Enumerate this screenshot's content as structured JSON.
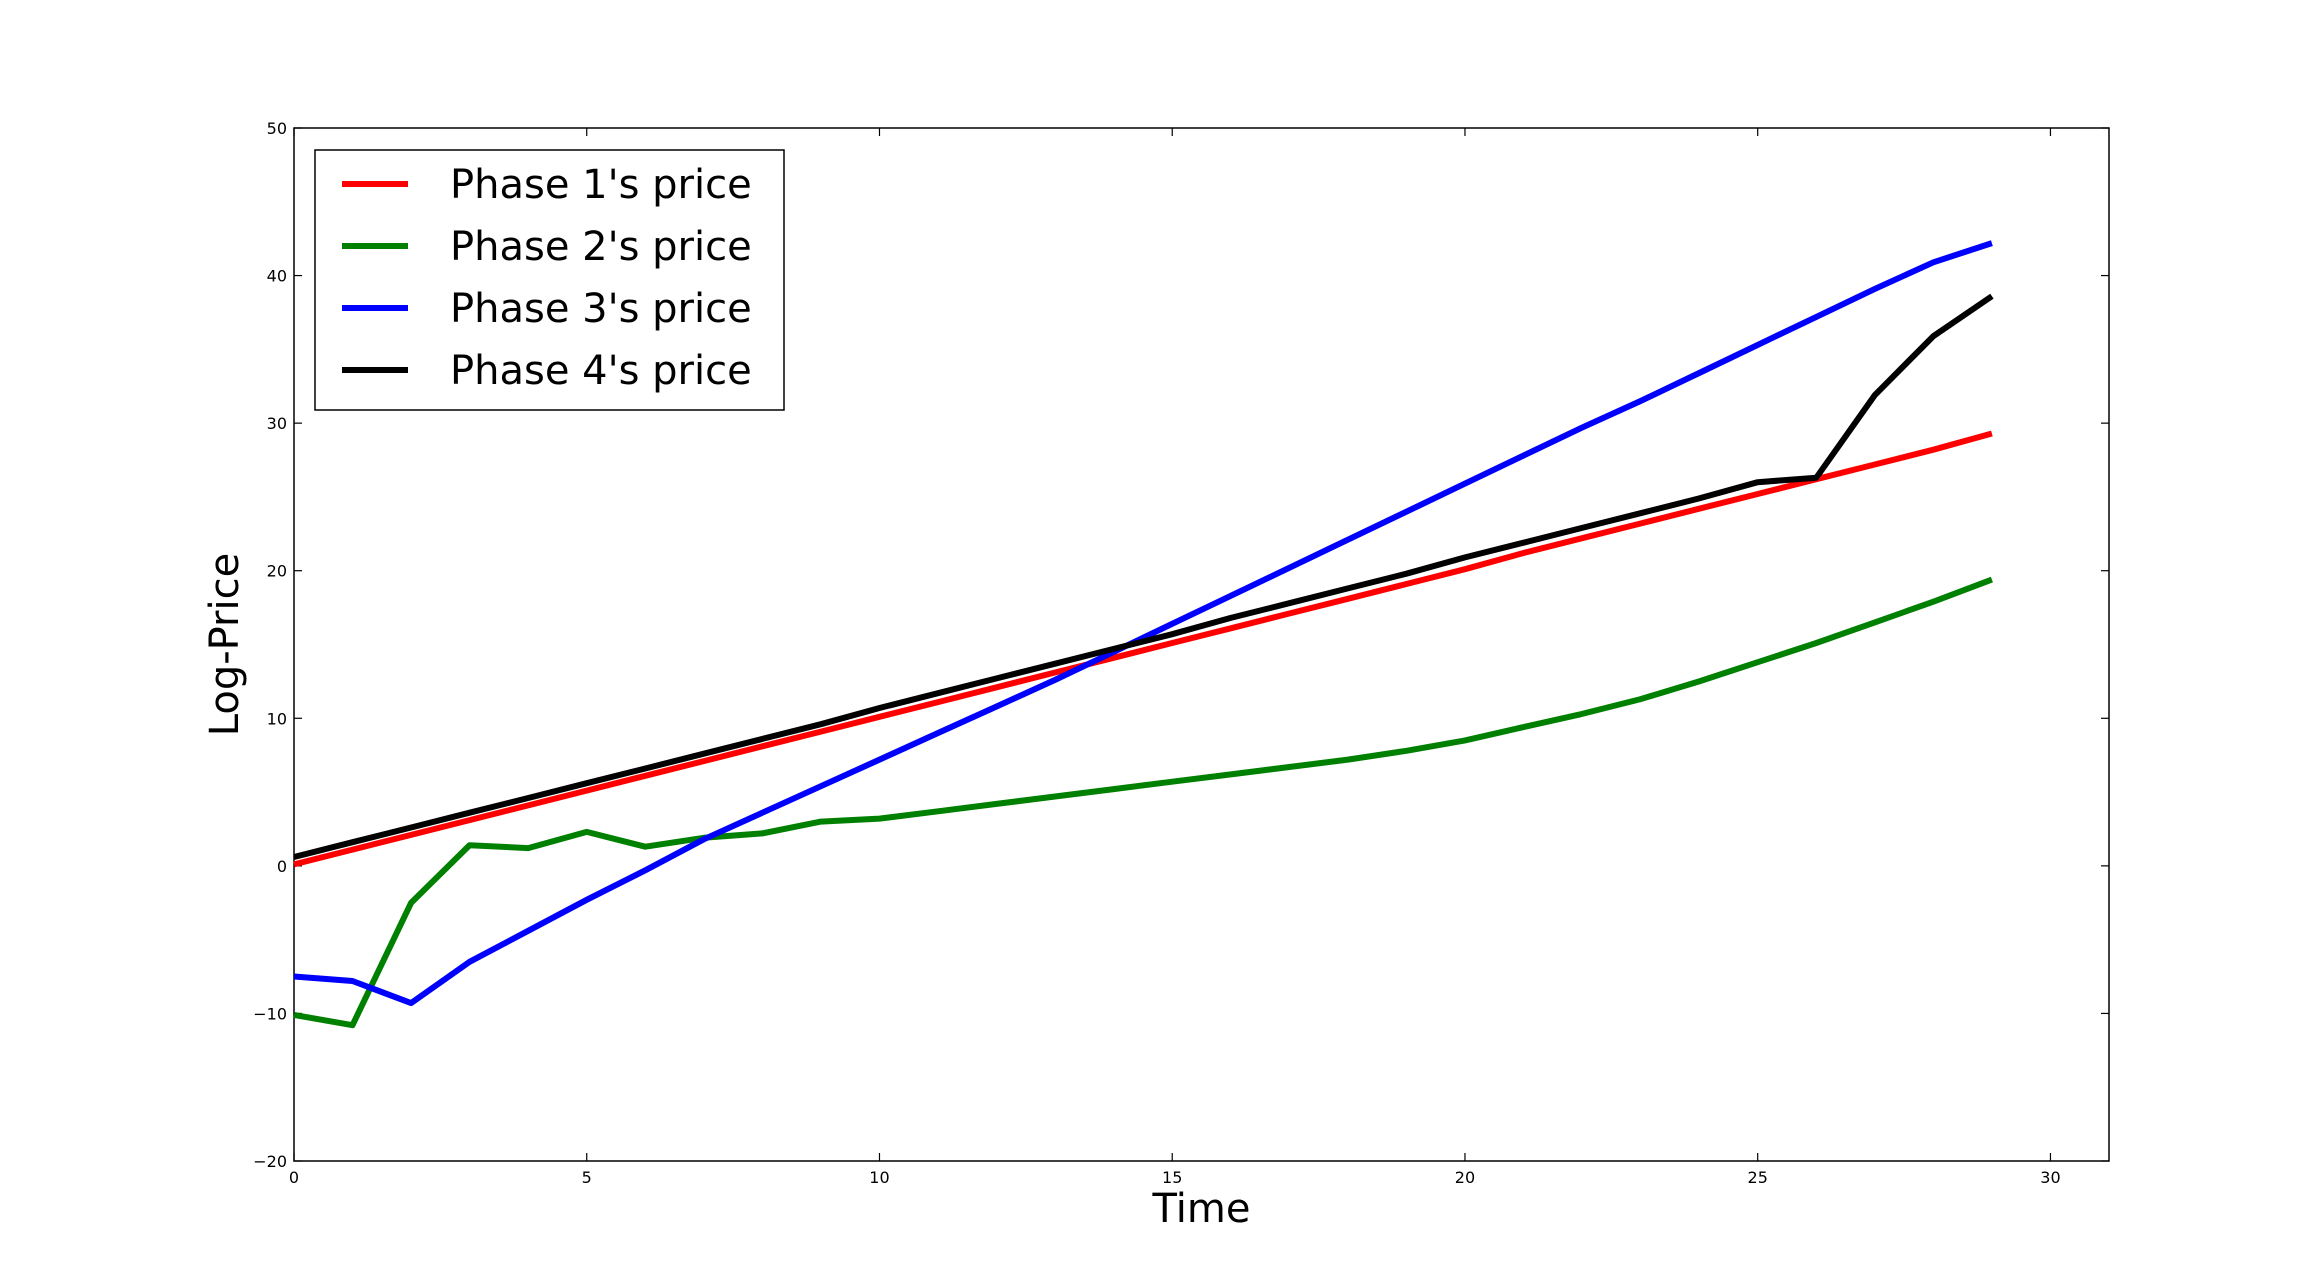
{
  "chart_data": {
    "type": "line",
    "title": "",
    "xlabel": "Time",
    "ylabel": "Log-Price",
    "xlim": [
      0,
      31
    ],
    "ylim": [
      -20,
      50
    ],
    "xticks": [
      0,
      5,
      10,
      15,
      20,
      25,
      30
    ],
    "yticks": [
      -20,
      -10,
      0,
      10,
      20,
      30,
      40,
      50
    ],
    "xtick_labels": [
      "0",
      "5",
      "10",
      "15",
      "20",
      "25",
      "30"
    ],
    "ytick_labels": [
      "−20",
      "−10",
      "0",
      "10",
      "20",
      "30",
      "40",
      "50"
    ],
    "grid": false,
    "legend_position": "top-left",
    "x": [
      0,
      1,
      2,
      3,
      4,
      5,
      6,
      7,
      8,
      9,
      10,
      11,
      12,
      13,
      14,
      15,
      16,
      17,
      18,
      19,
      20,
      21,
      22,
      23,
      24,
      25,
      26,
      27,
      28,
      29
    ],
    "series": [
      {
        "name": "Phase 1's price",
        "color": "#ff0000",
        "values": [
          0.1,
          1.1,
          2.1,
          3.1,
          4.1,
          5.1,
          6.1,
          7.1,
          8.1,
          9.1,
          10.1,
          11.1,
          12.1,
          13.1,
          14.1,
          15.1,
          16.1,
          17.1,
          18.1,
          19.1,
          20.1,
          21.2,
          22.2,
          23.2,
          24.2,
          25.2,
          26.2,
          27.2,
          28.2,
          29.3
        ]
      },
      {
        "name": "Phase 2's price",
        "color": "#008000",
        "values": [
          -10.1,
          -10.8,
          -2.5,
          1.4,
          1.2,
          2.3,
          1.3,
          1.9,
          2.2,
          3.0,
          3.2,
          3.7,
          4.2,
          4.7,
          5.2,
          5.7,
          6.2,
          6.7,
          7.2,
          7.8,
          8.5,
          9.4,
          10.3,
          11.3,
          12.5,
          13.8,
          15.1,
          16.5,
          17.9,
          19.4
        ]
      },
      {
        "name": "Phase 3's price",
        "color": "#0000ff",
        "values": [
          -7.5,
          -7.8,
          -9.3,
          -6.5,
          -4.4,
          -2.3,
          -0.3,
          1.8,
          3.6,
          5.4,
          7.2,
          9.0,
          10.8,
          12.6,
          14.5,
          16.4,
          18.3,
          20.2,
          22.1,
          24.0,
          25.9,
          27.8,
          29.7,
          31.5,
          33.4,
          35.3,
          37.2,
          39.1,
          40.9,
          42.2
        ]
      },
      {
        "name": "Phase 4's price",
        "color": "#000000",
        "values": [
          0.6,
          1.6,
          2.6,
          3.6,
          4.6,
          5.6,
          6.6,
          7.6,
          8.6,
          9.6,
          10.7,
          11.7,
          12.7,
          13.7,
          14.7,
          15.7,
          16.8,
          17.8,
          18.8,
          19.8,
          20.9,
          21.9,
          22.9,
          23.9,
          24.9,
          26.0,
          26.3,
          31.9,
          35.9,
          38.6
        ]
      }
    ]
  }
}
